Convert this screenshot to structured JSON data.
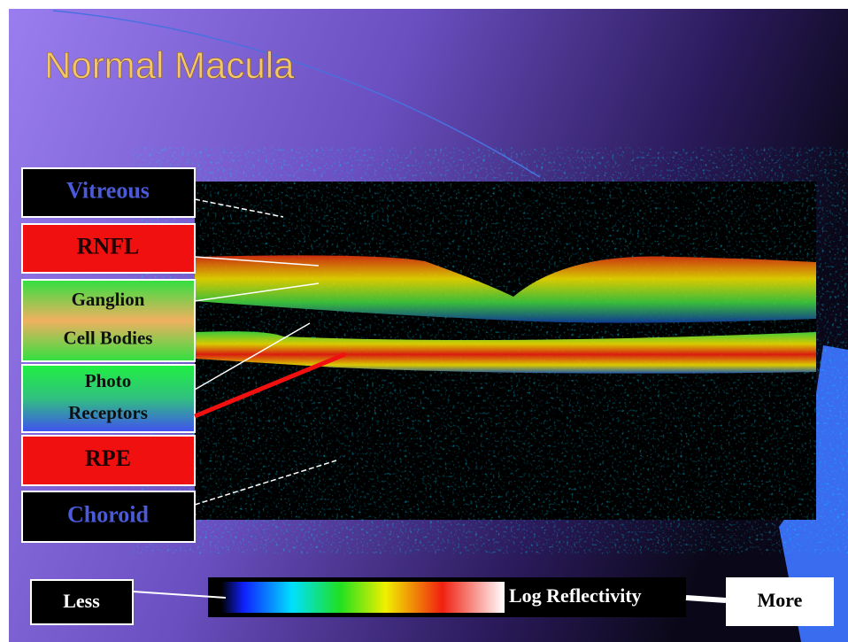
{
  "title": "Normal Macula",
  "layers": [
    {
      "lines": [
        "Vitreous"
      ]
    },
    {
      "lines": [
        "RNFL"
      ]
    },
    {
      "lines": [
        "Ganglion",
        "Cell Bodies"
      ]
    },
    {
      "lines": [
        "Photo",
        "Receptors"
      ]
    },
    {
      "lines": [
        "RPE"
      ]
    },
    {
      "lines": [
        "Choroid"
      ]
    }
  ],
  "scale": {
    "low": "Less",
    "label": "Log Reflectivity",
    "high": "More"
  }
}
